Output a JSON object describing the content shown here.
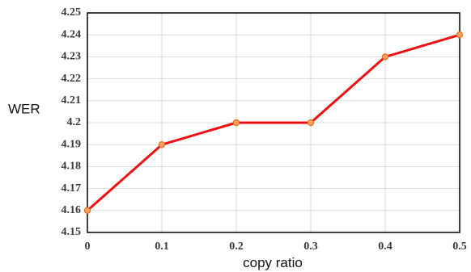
{
  "chart_data": {
    "type": "line",
    "title": "",
    "xlabel": "copy ratio",
    "ylabel": "WER",
    "x": [
      0,
      0.1,
      0.2,
      0.3,
      0.4,
      0.5
    ],
    "x_tick_labels": [
      "0",
      "0.1",
      "0.2",
      "0.3",
      "0.4",
      "0.5"
    ],
    "y_ticks": [
      4.15,
      4.16,
      4.17,
      4.18,
      4.19,
      4.2,
      4.21,
      4.22,
      4.23,
      4.24,
      4.25
    ],
    "y_tick_labels": [
      "4.15",
      "4.16",
      "4.17",
      "4.18",
      "4.19",
      "4.2",
      "4.21",
      "4.22",
      "4.23",
      "4.24",
      "4.25"
    ],
    "xlim": [
      0,
      0.5
    ],
    "ylim": [
      4.15,
      4.25
    ],
    "grid": true,
    "legend": "none",
    "series": [
      {
        "values": [
          4.16,
          4.19,
          4.2,
          4.2,
          4.23,
          4.24
        ],
        "line_color": "#ee1111",
        "marker_fill": "#f4a460",
        "marker_edge": "#ee6a1a"
      }
    ]
  }
}
